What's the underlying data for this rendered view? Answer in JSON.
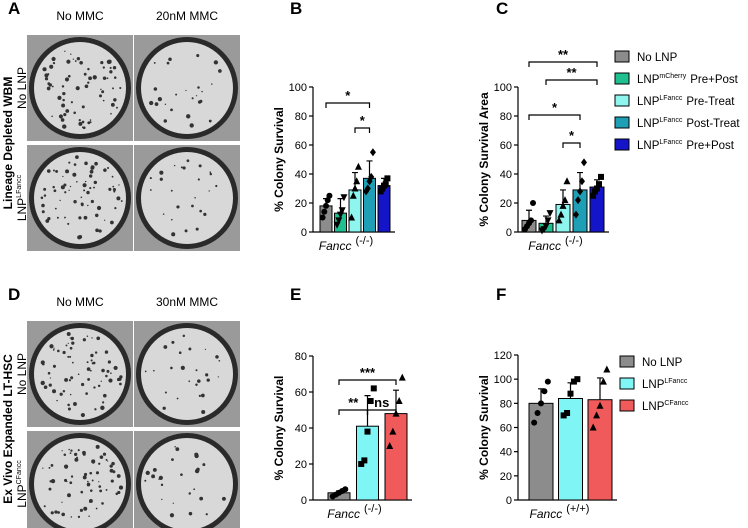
{
  "image_panels": [
    {
      "letter": "A",
      "group_label": "Lineage Depleted WBM",
      "columns": [
        "No MMC",
        "20nM MMC"
      ],
      "rows": [
        {
          "text": "No LNP"
        },
        {
          "text": "LNP",
          "superscript": "LFancc"
        }
      ]
    },
    {
      "letter": "D",
      "group_label": "Ex Vivo Expanded LT-HSC",
      "columns": [
        "No MMC",
        "30nM MMC"
      ],
      "rows": [
        {
          "text": "No LNP"
        },
        {
          "text": "LNP",
          "superscript": "CFancc"
        }
      ]
    }
  ],
  "chart_data": [
    {
      "letter": "B",
      "type": "bar",
      "ylabel": "% Colony Survival",
      "xlabel": "Fancc",
      "xlabel_suffix": "(-/-)",
      "ylim": [
        0,
        100
      ],
      "yticks": [
        0,
        20,
        40,
        60,
        80,
        100
      ],
      "series": [
        {
          "color": "#8c8c8c",
          "value": 18,
          "error": 5,
          "points": [
            10,
            14,
            18,
            22,
            25
          ]
        },
        {
          "color": "#1fbf8f",
          "value": 13,
          "error": 10,
          "points": [
            5,
            8,
            12,
            15,
            24
          ]
        },
        {
          "color": "#8ef5ef",
          "value": 29,
          "error": 12,
          "points": [
            10,
            25,
            30,
            35,
            45
          ]
        },
        {
          "color": "#1f9fb5",
          "value": 37,
          "error": 12,
          "points": [
            28,
            30,
            35,
            38,
            55
          ]
        },
        {
          "color": "#1414c8",
          "value": 32,
          "error": 5,
          "points": [
            28,
            30,
            32,
            33,
            37
          ]
        }
      ],
      "brackets": [
        {
          "label": "*"
        },
        {
          "label": "*"
        }
      ]
    },
    {
      "letter": "C",
      "type": "bar",
      "ylabel": "% Colony Survival Area",
      "xlabel": "Fancc",
      "xlabel_suffix": "(-/-)",
      "ylim": [
        0,
        100
      ],
      "yticks": [
        0,
        20,
        40,
        60,
        80,
        100
      ],
      "series": [
        {
          "name": "No LNP",
          "color": "#8c8c8c",
          "value": 8,
          "error": 7,
          "points": [
            2,
            4,
            6,
            8,
            20
          ]
        },
        {
          "name": "LNP",
          "superscript": "mCherry",
          "suffix": "Pre+Post",
          "color": "#1fbf8f",
          "value": 6,
          "error": 5,
          "points": [
            1,
            2,
            4,
            8,
            13
          ]
        },
        {
          "name": "LNP",
          "superscript": "LFancc",
          "suffix": "Pre-Treat",
          "color": "#8ef5ef",
          "value": 19,
          "error": 10,
          "points": [
            8,
            12,
            18,
            22,
            35
          ]
        },
        {
          "name": "LNP",
          "superscript": "LFancc",
          "suffix": "Post-Treat",
          "color": "#1f9fb5",
          "value": 29,
          "error": 12,
          "points": [
            12,
            22,
            28,
            35,
            48
          ]
        },
        {
          "name": "LNP",
          "superscript": "LFancc",
          "suffix": "Pre+Post",
          "color": "#1414c8",
          "value": 31,
          "error": 5,
          "points": [
            25,
            28,
            30,
            33,
            38
          ]
        }
      ],
      "brackets": [
        {
          "label": "**"
        },
        {
          "label": "**"
        },
        {
          "label": "*"
        },
        {
          "label": "*"
        }
      ]
    },
    {
      "letter": "E",
      "type": "bar",
      "ylabel": "% Colony Survival",
      "xlabel": "Fancc",
      "xlabel_suffix": "(-/-)",
      "ylim": [
        0,
        80
      ],
      "yticks": [
        0,
        20,
        40,
        60,
        80
      ],
      "series": [
        {
          "color": "#8c8c8c",
          "value": 4,
          "error": 1,
          "points": [
            2,
            3,
            4,
            5,
            6
          ]
        },
        {
          "color": "#7ff5f5",
          "value": 41,
          "error": 17,
          "points": [
            20,
            22,
            38,
            55,
            62
          ]
        },
        {
          "color": "#f05a5a",
          "value": 48,
          "error": 13,
          "points": [
            30,
            38,
            48,
            55,
            68
          ]
        }
      ],
      "brackets": [
        {
          "label": "***"
        },
        {
          "label": "**"
        },
        {
          "label": "ns"
        }
      ]
    },
    {
      "letter": "F",
      "type": "bar",
      "ylabel": "% Colony Survival",
      "xlabel": "Fancc",
      "xlabel_suffix": "(+/+)",
      "ylim": [
        0,
        120
      ],
      "yticks": [
        0,
        20,
        40,
        60,
        80,
        100,
        120
      ],
      "series": [
        {
          "name": "No LNP",
          "color": "#8c8c8c",
          "value": 80,
          "error": 12,
          "points": [
            64,
            72,
            80,
            90,
            98
          ]
        },
        {
          "name": "LNP",
          "superscript": "LFancc",
          "color": "#7ff5f5",
          "value": 84,
          "error": 13,
          "points": [
            70,
            72,
            88,
            98,
            100
          ]
        },
        {
          "name": "LNP",
          "superscript": "CFancc",
          "color": "#f05a5a",
          "value": 83,
          "error": 18,
          "points": [
            60,
            70,
            78,
            98,
            108
          ]
        }
      ]
    }
  ]
}
